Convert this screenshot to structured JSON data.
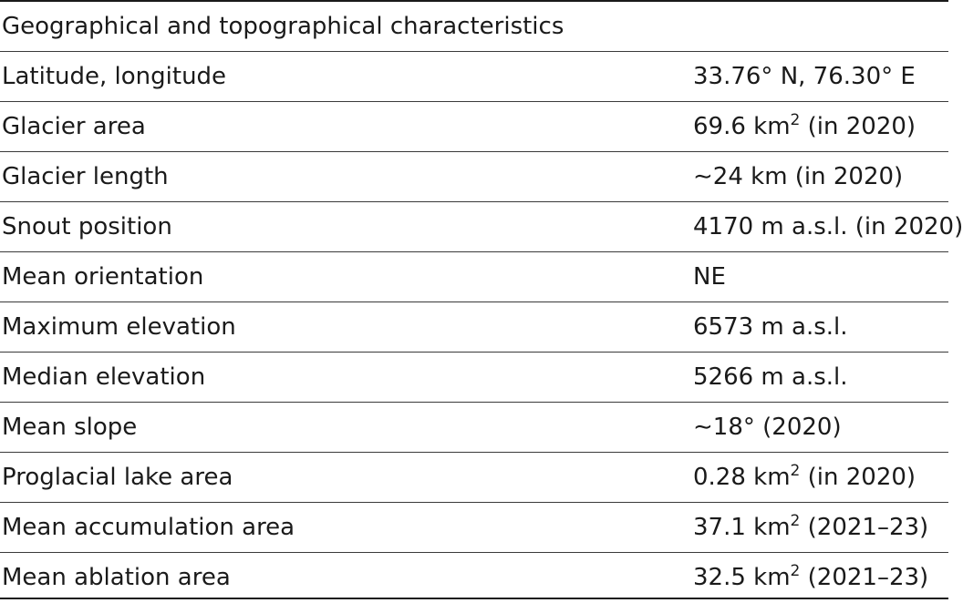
{
  "table": {
    "header": "Geographical and topographical characteristics",
    "rows": [
      {
        "label": "Latitude, longitude",
        "value": "33.76° N, 76.30° E",
        "sup": "",
        "suffix": ""
      },
      {
        "label": "Glacier area",
        "value": "69.6 km",
        "sup": "2",
        "suffix": " (in 2020)"
      },
      {
        "label": "Glacier length",
        "value": "∼24 km (in 2020)",
        "sup": "",
        "suffix": ""
      },
      {
        "label": "Snout position",
        "value": "4170 m a.s.l. (in 2020)",
        "sup": "",
        "suffix": ""
      },
      {
        "label": "Mean orientation",
        "value": "NE",
        "sup": "",
        "suffix": ""
      },
      {
        "label": "Maximum elevation",
        "value": "6573 m a.s.l.",
        "sup": "",
        "suffix": ""
      },
      {
        "label": "Median elevation",
        "value": "5266 m a.s.l.",
        "sup": "",
        "suffix": ""
      },
      {
        "label": "Mean slope",
        "value": "∼18° (2020)",
        "sup": "",
        "suffix": ""
      },
      {
        "label": "Proglacial lake area",
        "value": "0.28 km",
        "sup": "2",
        "suffix": " (in 2020)"
      },
      {
        "label": "Mean accumulation area",
        "value": "37.1 km",
        "sup": "2",
        "suffix": " (2021–23)"
      },
      {
        "label": "Mean ablation area",
        "value": "32.5 km",
        "sup": "2",
        "suffix": " (2021–23)"
      }
    ]
  }
}
